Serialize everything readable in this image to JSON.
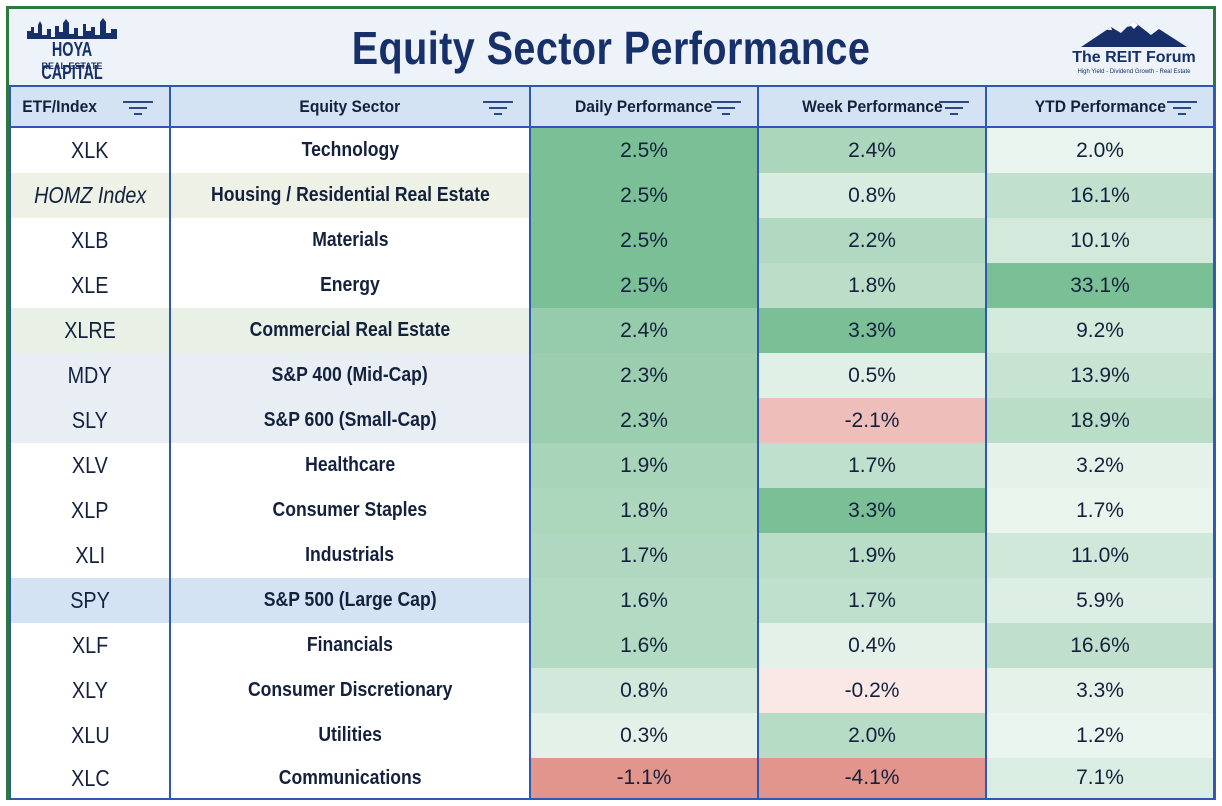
{
  "title": "Equity Sector Performance",
  "logo_left": {
    "line1": "HOYA CAPITAL",
    "line2": "REAL ESTATE"
  },
  "logo_right": {
    "line1": "The REIT Forum",
    "line2": "High Yield - Dividend Growth - Real Estate"
  },
  "colors": {
    "positive_max": "#6fb98c",
    "negative_max": "#e2958c",
    "header_bg": "#d4e3f4",
    "border": "#2f59b0",
    "title": "#17306a"
  },
  "chart_data": {
    "type": "table",
    "columns": [
      "ETF/Index",
      "Equity Sector",
      "Daily Performance",
      "Week Performance",
      "YTD Performance"
    ],
    "rows": [
      {
        "etf": "XLK",
        "sector": "Technology",
        "daily": "2.5%",
        "week": "2.4%",
        "ytd": "2.0%",
        "highlight": ""
      },
      {
        "etf": "HOMZ Index",
        "sector": "Housing / Residential Real Estate",
        "daily": "2.5%",
        "week": "0.8%",
        "ytd": "16.1%",
        "highlight": "housing",
        "italic": true
      },
      {
        "etf": "XLB",
        "sector": "Materials",
        "daily": "2.5%",
        "week": "2.2%",
        "ytd": "10.1%",
        "highlight": ""
      },
      {
        "etf": "XLE",
        "sector": "Energy",
        "daily": "2.5%",
        "week": "1.8%",
        "ytd": "33.1%",
        "highlight": ""
      },
      {
        "etf": "XLRE",
        "sector": "Commercial Real Estate",
        "daily": "2.4%",
        "week": "3.3%",
        "ytd": "9.2%",
        "highlight": "reit"
      },
      {
        "etf": "MDY",
        "sector": "S&P 400 (Mid-Cap)",
        "daily": "2.3%",
        "week": "0.5%",
        "ytd": "13.9%",
        "highlight": "index"
      },
      {
        "etf": "SLY",
        "sector": "S&P 600 (Small-Cap)",
        "daily": "2.3%",
        "week": "-2.1%",
        "ytd": "18.9%",
        "highlight": "index"
      },
      {
        "etf": "XLV",
        "sector": "Healthcare",
        "daily": "1.9%",
        "week": "1.7%",
        "ytd": "3.2%",
        "highlight": ""
      },
      {
        "etf": "XLP",
        "sector": "Consumer Staples",
        "daily": "1.8%",
        "week": "3.3%",
        "ytd": "1.7%",
        "highlight": ""
      },
      {
        "etf": "XLI",
        "sector": "Industrials",
        "daily": "1.7%",
        "week": "1.9%",
        "ytd": "11.0%",
        "highlight": ""
      },
      {
        "etf": "SPY",
        "sector": "S&P 500 (Large Cap)",
        "daily": "1.6%",
        "week": "1.7%",
        "ytd": "5.9%",
        "highlight": "spy"
      },
      {
        "etf": "XLF",
        "sector": "Financials",
        "daily": "1.6%",
        "week": "0.4%",
        "ytd": "16.6%",
        "highlight": ""
      },
      {
        "etf": "XLY",
        "sector": "Consumer Discretionary",
        "daily": "0.8%",
        "week": "-0.2%",
        "ytd": "3.3%",
        "highlight": ""
      },
      {
        "etf": "XLU",
        "sector": "Utilities",
        "daily": "0.3%",
        "week": "2.0%",
        "ytd": "1.2%",
        "highlight": ""
      },
      {
        "etf": "XLC",
        "sector": "Communications",
        "daily": "-1.1%",
        "week": "-4.1%",
        "ytd": "7.1%",
        "highlight": ""
      }
    ]
  }
}
